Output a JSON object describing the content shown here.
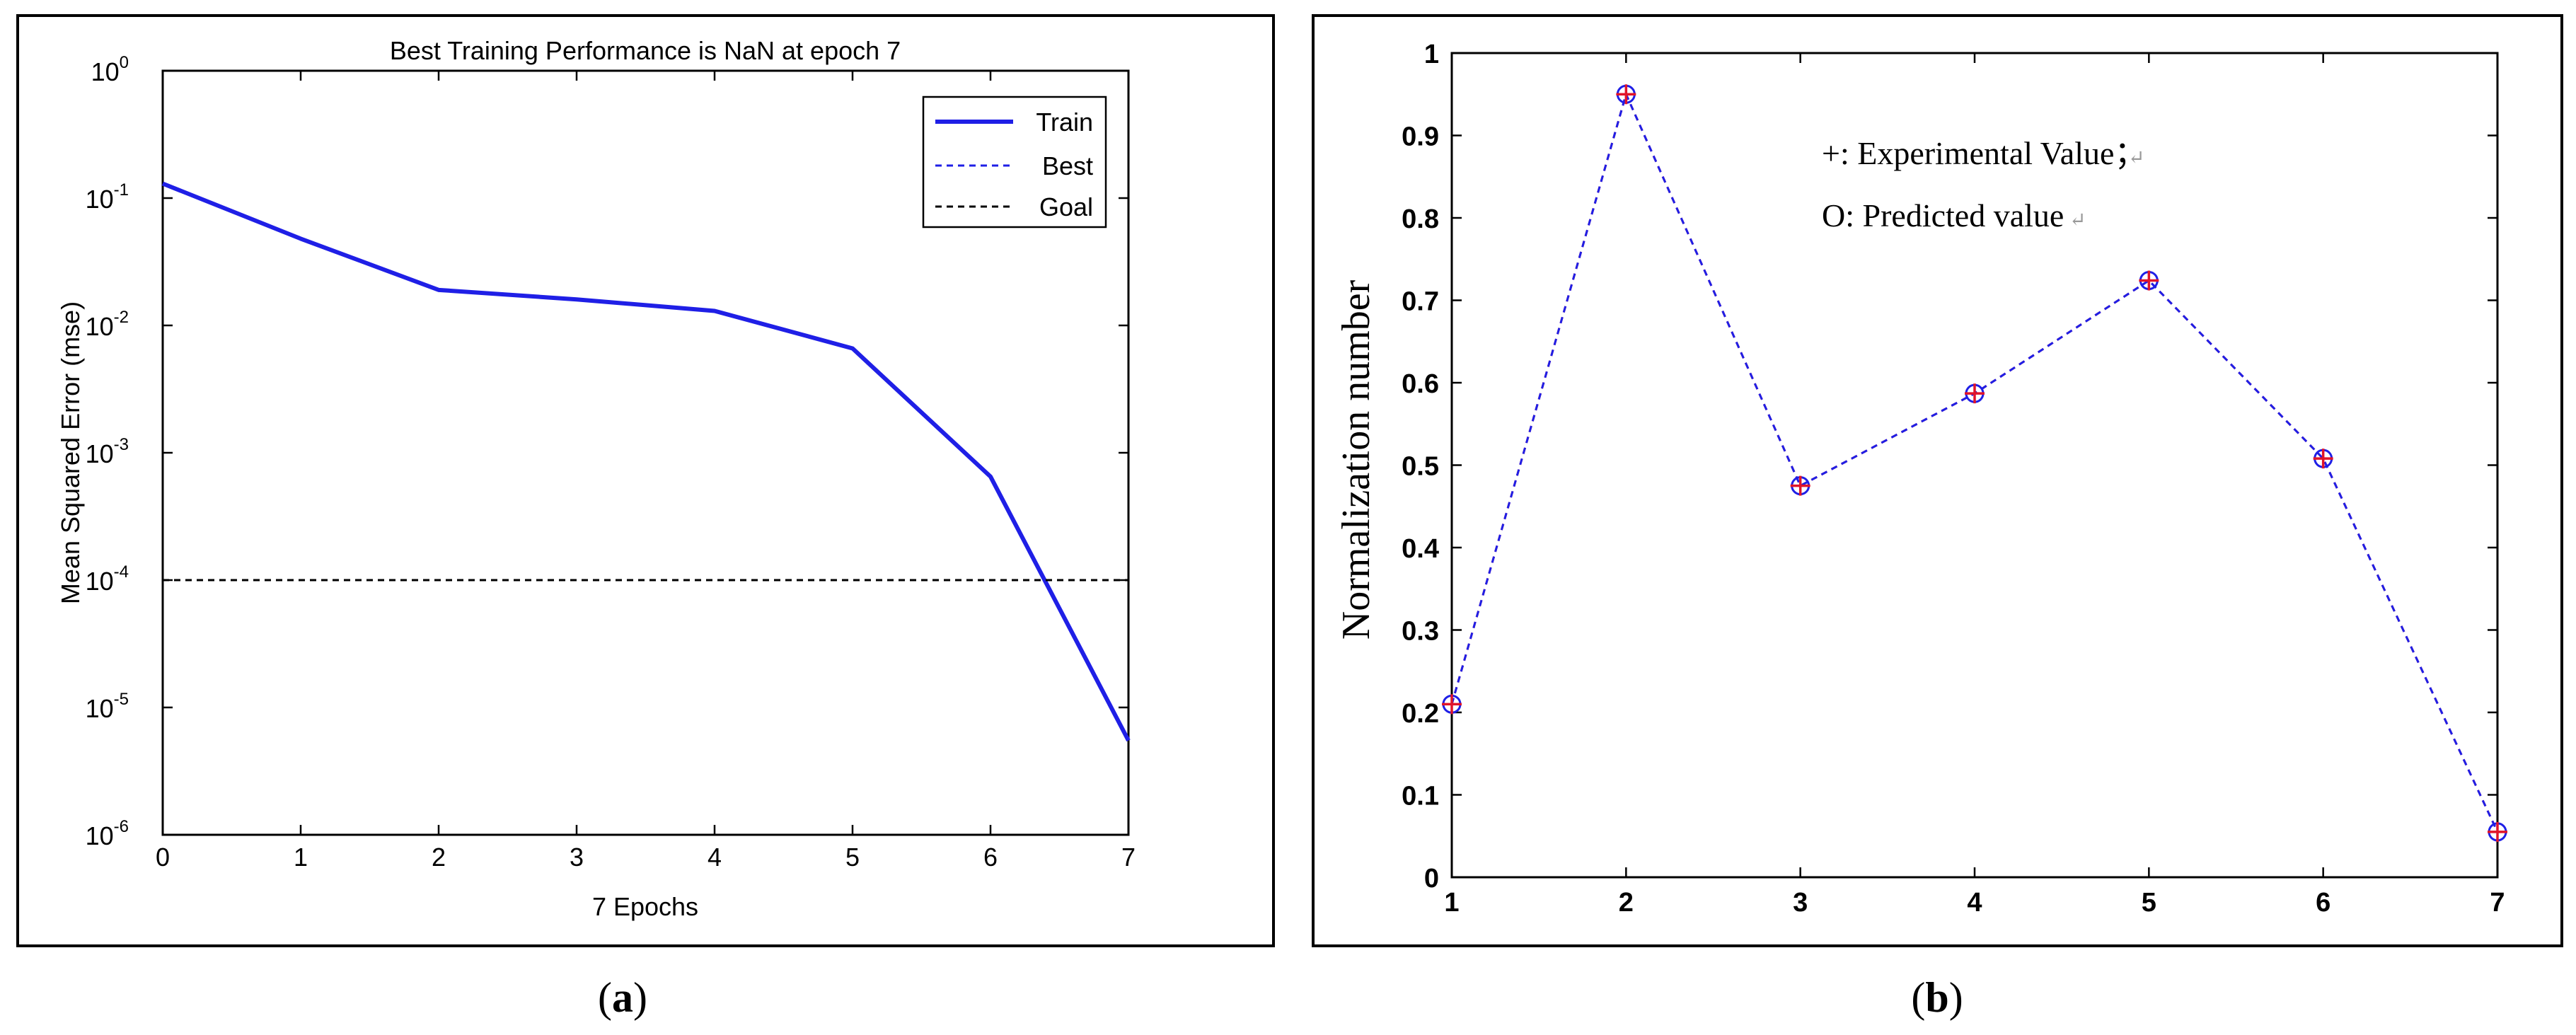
{
  "chart_data": [
    {
      "type": "line",
      "panel_label": "a",
      "title": "Best Training Performance is NaN at epoch 7",
      "xlabel": "7 Epochs",
      "ylabel": "Mean Squared Error  (mse)",
      "xscale": "linear",
      "yscale": "log",
      "xlim": [
        0,
        7
      ],
      "ylim": [
        1e-06,
        1
      ],
      "xticks": [
        0,
        1,
        2,
        3,
        4,
        5,
        6,
        7
      ],
      "xtick_labels": [
        "0",
        "1",
        "2",
        "3",
        "4",
        "5",
        "6",
        "7"
      ],
      "yticks": [
        {
          "value": 1,
          "base": "10",
          "exp": "0"
        },
        {
          "value": 0.1,
          "base": "10",
          "exp": "-1"
        },
        {
          "value": 0.01,
          "base": "10",
          "exp": "-2"
        },
        {
          "value": 0.001,
          "base": "10",
          "exp": "-3"
        },
        {
          "value": 0.0001,
          "base": "10",
          "exp": "-4"
        },
        {
          "value": 1e-05,
          "base": "10",
          "exp": "-5"
        },
        {
          "value": 1e-06,
          "base": "10",
          "exp": "-6"
        }
      ],
      "grid": false,
      "legend_position": "top-right",
      "series": [
        {
          "name": "Train",
          "style": "solid",
          "color": "#1f1fe6",
          "x": [
            0,
            1,
            2,
            3,
            4,
            5,
            6,
            7
          ],
          "y": [
            0.13,
            0.048,
            0.019,
            0.016,
            0.013,
            0.0066,
            0.00065,
            5.5e-06
          ]
        },
        {
          "name": "Best",
          "style": "dashed",
          "color": "#1f1fe6",
          "x": [],
          "y": []
        },
        {
          "name": "Goal",
          "style": "dashed",
          "color": "#000000",
          "x": [
            0,
            7
          ],
          "y": [
            0.0001,
            0.0001
          ]
        }
      ]
    },
    {
      "type": "line",
      "panel_label": "b",
      "title": "",
      "xlabel": "",
      "ylabel": "Normalization number",
      "xlim": [
        1,
        7
      ],
      "ylim": [
        0,
        1
      ],
      "xticks": [
        1,
        2,
        3,
        4,
        5,
        6,
        7
      ],
      "xtick_labels": [
        "1",
        "2",
        "3",
        "4",
        "5",
        "6",
        "7"
      ],
      "yticks": [
        0,
        0.1,
        0.2,
        0.3,
        0.4,
        0.5,
        0.6,
        0.7,
        0.8,
        0.9,
        1
      ],
      "ytick_labels": [
        "0",
        "0.1",
        "0.2",
        "0.3",
        "0.4",
        "0.5",
        "0.6",
        "0.7",
        "0.8",
        "0.9",
        "1"
      ],
      "grid": false,
      "annotations": [
        "+: Experimental Value；",
        "O: Predicted value"
      ],
      "series": [
        {
          "name": "Experimental Value",
          "marker": "+",
          "color": "#e0142a",
          "style": "dashed",
          "x": [
            1,
            2,
            3,
            4,
            5,
            6,
            7
          ],
          "y": [
            0.21,
            0.95,
            0.475,
            0.587,
            0.724,
            0.508,
            0.055
          ]
        },
        {
          "name": "Predicted value",
          "marker": "o",
          "color": "#1f1fe6",
          "style": "dashed",
          "x": [
            1,
            2,
            3,
            4,
            5,
            6,
            7
          ],
          "y": [
            0.21,
            0.95,
            0.475,
            0.587,
            0.724,
            0.508,
            0.055
          ]
        }
      ]
    }
  ]
}
